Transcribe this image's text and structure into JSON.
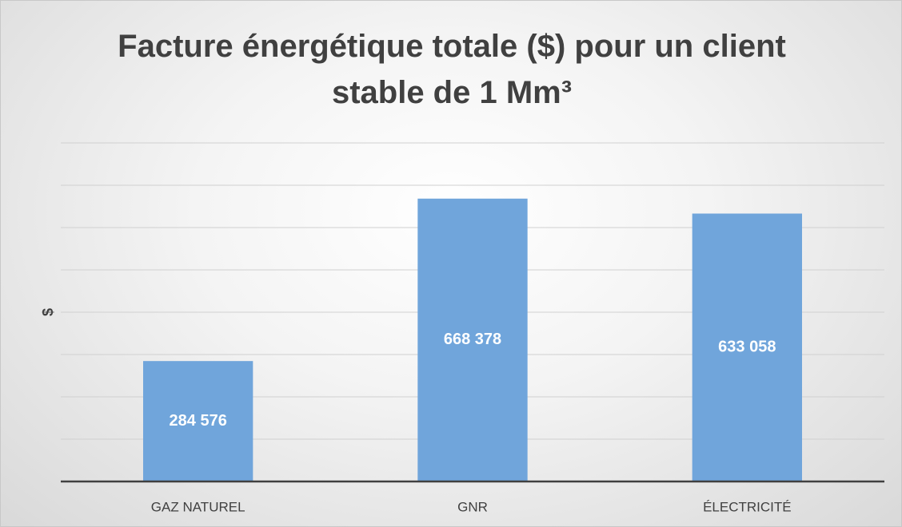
{
  "chart_data": {
    "type": "bar",
    "title": "Facture énergétique totale ($) pour un client stable de 1 Mm³",
    "y_label": "$",
    "categories": [
      "GAZ NATUREL",
      "GNR",
      "ÉLECTRICITÉ"
    ],
    "values": [
      284576,
      668378,
      633058
    ],
    "value_labels": [
      "284 576",
      "668 378",
      "633 058"
    ],
    "color": "#70a5db",
    "ylim": [
      0,
      800000
    ],
    "yticks": [
      0,
      100000,
      200000,
      300000,
      400000,
      500000,
      600000,
      700000,
      800000
    ],
    "grid": true
  }
}
